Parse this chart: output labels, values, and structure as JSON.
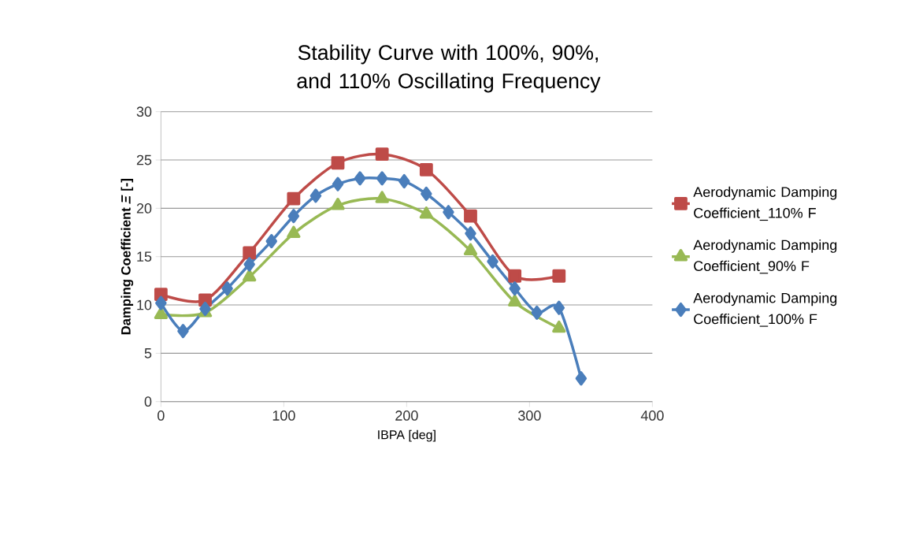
{
  "chart_data": {
    "type": "line",
    "title": "Stability Curve with 100%, 90%, and 110% Oscillating Frequency",
    "xlabel": "IBPA [deg]",
    "ylabel": "Damping Coefficient *Ξ* [-]",
    "xlim": [
      0,
      400
    ],
    "xticks": [
      0,
      100,
      200,
      300,
      400
    ],
    "ylim": [
      0,
      30
    ],
    "yticks": [
      0,
      5,
      10,
      15,
      20,
      25,
      30
    ],
    "grid": "y",
    "legend": "right",
    "line_style": "solid",
    "series": [
      {
        "name": "Aerodynamic Damping Coefficient_100% F",
        "color": "#4a7ebb",
        "marker": "diamond",
        "x": [
          0,
          18,
          36,
          54,
          72,
          90,
          108,
          126,
          144,
          162,
          180,
          198,
          216,
          234,
          252,
          270,
          288,
          306,
          324,
          342
        ],
        "values": [
          10.2,
          7.3,
          9.6,
          11.7,
          14.2,
          16.6,
          19.2,
          21.3,
          22.5,
          23.1,
          23.1,
          22.8,
          21.5,
          19.6,
          17.4,
          14.5,
          11.7,
          9.2,
          9.7,
          2.4
        ]
      },
      {
        "name": "Aerodynamic Damping Coefficient_110% F",
        "color": "#be4b48",
        "marker": "square",
        "x": [
          0,
          36,
          72,
          108,
          144,
          180,
          216,
          252,
          288,
          324
        ],
        "values": [
          11.1,
          10.5,
          15.4,
          21.0,
          24.7,
          25.6,
          24.0,
          19.2,
          13.0,
          13.0
        ]
      },
      {
        "name": "Aerodynamic Damping Coefficient_90% F",
        "color": "#98b954",
        "marker": "triangle",
        "x": [
          0,
          36,
          72,
          108,
          144,
          180,
          216,
          252,
          288,
          324
        ],
        "values": [
          9.0,
          9.2,
          12.9,
          17.4,
          20.3,
          21.0,
          19.4,
          15.6,
          10.3,
          7.6
        ]
      }
    ]
  }
}
